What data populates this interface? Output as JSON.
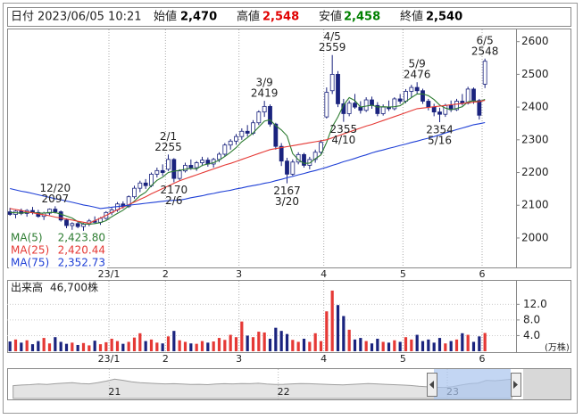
{
  "header": {
    "date_label": "日付",
    "datetime": "2023/06/05 10:21",
    "fields": [
      {
        "label": "始値",
        "value": "2,470",
        "color": "#000000"
      },
      {
        "label": "高値",
        "value": "2,548",
        "color": "#e00000"
      },
      {
        "label": "安値",
        "value": "2,458",
        "color": "#008000"
      },
      {
        "label": "終値",
        "value": "2,540",
        "color": "#000000"
      }
    ]
  },
  "chart_data": [
    {
      "type": "candlestick",
      "categories": [
        null,
        null,
        null,
        null,
        null,
        null,
        null,
        null,
        null,
        null,
        null,
        null,
        null,
        null,
        null,
        null,
        null,
        null,
        "23/1",
        null,
        null,
        null,
        null,
        null,
        null,
        null,
        null,
        null,
        "2",
        null,
        null,
        null,
        null,
        null,
        null,
        null,
        null,
        null,
        null,
        null,
        null,
        "3",
        null,
        null,
        null,
        null,
        null,
        null,
        null,
        null,
        null,
        null,
        null,
        null,
        null,
        null,
        "4",
        null,
        null,
        null,
        null,
        null,
        null,
        null,
        null,
        null,
        null,
        null,
        null,
        null,
        "5",
        null,
        null,
        null,
        null,
        null,
        null,
        null,
        null,
        null,
        null,
        null,
        null,
        null,
        "6"
      ],
      "open": [
        2080,
        2072,
        2082,
        2075,
        2084,
        2078,
        2066,
        2076,
        2088,
        2080,
        2055,
        2038,
        2044,
        2035,
        2042,
        2052,
        2048,
        2060,
        2078,
        2086,
        2104,
        2096,
        2126,
        2152,
        2168,
        2160,
        2195,
        2206,
        2210,
        2240,
        2182,
        2205,
        2222,
        2215,
        2230,
        2238,
        2226,
        2240,
        2256,
        2284,
        2296,
        2310,
        2326,
        2320,
        2352,
        2385,
        2402,
        2348,
        2280,
        2235,
        2195,
        2232,
        2255,
        2222,
        2240,
        2262,
        2370,
        2450,
        2500,
        2410,
        2380,
        2412,
        2400,
        2390,
        2422,
        2405,
        2380,
        2400,
        2395,
        2425,
        2418,
        2448,
        2460,
        2450,
        2418,
        2400,
        2385,
        2378,
        2405,
        2392,
        2418,
        2412,
        2455,
        2420,
        2470
      ],
      "high": [
        2092,
        2085,
        2090,
        2088,
        2095,
        2086,
        2080,
        2090,
        2097,
        2084,
        2060,
        2048,
        2050,
        2046,
        2058,
        2066,
        2064,
        2082,
        2092,
        2110,
        2112,
        2130,
        2160,
        2175,
        2180,
        2200,
        2215,
        2225,
        2255,
        2244,
        2210,
        2230,
        2240,
        2235,
        2248,
        2246,
        2245,
        2262,
        2290,
        2302,
        2318,
        2335,
        2345,
        2360,
        2390,
        2419,
        2408,
        2352,
        2290,
        2245,
        2240,
        2262,
        2260,
        2248,
        2270,
        2300,
        2460,
        2559,
        2510,
        2425,
        2420,
        2440,
        2418,
        2430,
        2432,
        2415,
        2408,
        2420,
        2430,
        2440,
        2455,
        2468,
        2476,
        2456,
        2425,
        2410,
        2398,
        2410,
        2420,
        2425,
        2440,
        2462,
        2460,
        2425,
        2548
      ],
      "low": [
        2068,
        2060,
        2070,
        2065,
        2072,
        2062,
        2055,
        2070,
        2075,
        2050,
        2030,
        2025,
        2030,
        2022,
        2036,
        2045,
        2040,
        2056,
        2070,
        2080,
        2090,
        2092,
        2120,
        2140,
        2150,
        2155,
        2185,
        2190,
        2205,
        2170,
        2176,
        2200,
        2208,
        2205,
        2220,
        2218,
        2215,
        2232,
        2250,
        2270,
        2285,
        2300,
        2310,
        2315,
        2345,
        2370,
        2340,
        2270,
        2220,
        2167,
        2190,
        2225,
        2215,
        2210,
        2230,
        2255,
        2365,
        2440,
        2400,
        2355,
        2372,
        2395,
        2380,
        2385,
        2395,
        2372,
        2374,
        2388,
        2390,
        2410,
        2412,
        2430,
        2440,
        2410,
        2390,
        2372,
        2354,
        2370,
        2385,
        2388,
        2405,
        2408,
        2410,
        2362,
        2458
      ],
      "close": [
        2072,
        2082,
        2075,
        2084,
        2078,
        2066,
        2076,
        2088,
        2080,
        2055,
        2038,
        2044,
        2035,
        2042,
        2052,
        2048,
        2060,
        2078,
        2086,
        2104,
        2096,
        2126,
        2152,
        2168,
        2160,
        2195,
        2206,
        2200,
        2240,
        2182,
        2205,
        2222,
        2215,
        2230,
        2238,
        2226,
        2240,
        2256,
        2284,
        2296,
        2310,
        2326,
        2320,
        2352,
        2385,
        2402,
        2348,
        2280,
        2235,
        2195,
        2232,
        2255,
        2222,
        2240,
        2262,
        2292,
        2445,
        2500,
        2410,
        2380,
        2412,
        2400,
        2390,
        2422,
        2405,
        2380,
        2400,
        2395,
        2425,
        2418,
        2448,
        2460,
        2450,
        2418,
        2400,
        2385,
        2378,
        2405,
        2392,
        2418,
        2412,
        2455,
        2420,
        2375,
        2540
      ],
      "up_color": "#ffffff",
      "down_color": "#1a237e",
      "edge_color": "#1a237e",
      "series": [
        {
          "name": "MA(5)",
          "color": "#2e7d32",
          "value_label": "2,423.80",
          "values": [
            2078,
            2077,
            2076,
            2078,
            2078,
            2076,
            2076,
            2078,
            2078,
            2073,
            2067,
            2061,
            2050,
            2043,
            2042,
            2044,
            2047,
            2053,
            2065,
            2075,
            2085,
            2098,
            2113,
            2129,
            2140,
            2160,
            2176,
            2186,
            2200,
            2204,
            2207,
            2210,
            2213,
            2211,
            2222,
            2226,
            2230,
            2238,
            2249,
            2262,
            2276,
            2294,
            2307,
            2321,
            2339,
            2357,
            2361,
            2343,
            2330,
            2312,
            2258,
            2239,
            2228,
            2229,
            2242,
            2254,
            2292,
            2340,
            2370,
            2406,
            2429,
            2420,
            2400,
            2403,
            2406,
            2400,
            2401,
            2400,
            2401,
            2404,
            2417,
            2429,
            2440,
            2440,
            2435,
            2423,
            2406,
            2397,
            2392,
            2396,
            2401,
            2416,
            2419,
            2416,
            2423.8
          ]
        },
        {
          "name": "MA(25)",
          "color": "#e53935",
          "value_label": "2,420.44",
          "values": [
            2090,
            2087,
            2084,
            2080,
            2077,
            2074,
            2071,
            2068,
            2064,
            2061,
            2058,
            2055,
            2051,
            2048,
            2045,
            2053,
            2061,
            2069,
            2078,
            2086,
            2094,
            2102,
            2110,
            2118,
            2126,
            2135,
            2143,
            2151,
            2159,
            2167,
            2175,
            2181,
            2187,
            2193,
            2199,
            2205,
            2211,
            2217,
            2223,
            2228,
            2234,
            2240,
            2246,
            2252,
            2258,
            2264,
            2270,
            2273,
            2276,
            2279,
            2282,
            2285,
            2288,
            2291,
            2294,
            2297,
            2300,
            2306,
            2312,
            2318,
            2324,
            2330,
            2336,
            2342,
            2347,
            2353,
            2359,
            2365,
            2371,
            2377,
            2383,
            2389,
            2395,
            2397,
            2399,
            2401,
            2403,
            2405,
            2407,
            2409,
            2411,
            2413,
            2415,
            2417,
            2420.44
          ]
        },
        {
          "name": "MA(75)",
          "color": "#1e3fd6",
          "value_label": "2,352.73",
          "values": [
            2151,
            2147,
            2143,
            2140,
            2136,
            2132,
            2128,
            2124,
            2120,
            2117,
            2113,
            2109,
            2105,
            2101,
            2098,
            2094,
            2090,
            2092,
            2094,
            2096,
            2098,
            2100,
            2102,
            2104,
            2106,
            2108,
            2110,
            2112,
            2114,
            2115,
            2116,
            2119,
            2123,
            2126,
            2129,
            2133,
            2136,
            2140,
            2143,
            2146,
            2150,
            2153,
            2157,
            2160,
            2163,
            2167,
            2170,
            2175,
            2179,
            2184,
            2188,
            2193,
            2197,
            2202,
            2206,
            2211,
            2216,
            2222,
            2227,
            2233,
            2238,
            2243,
            2249,
            2254,
            2260,
            2265,
            2269,
            2274,
            2278,
            2283,
            2287,
            2292,
            2296,
            2301,
            2305,
            2310,
            2315,
            2321,
            2326,
            2331,
            2336,
            2341,
            2346,
            2349,
            2352.73
          ]
        }
      ],
      "annotations": [
        {
          "date": "12/20",
          "value": 2097
        },
        {
          "date": "2/1",
          "value": 2255
        },
        {
          "date": "2/6",
          "value": 2170
        },
        {
          "date": "3/9",
          "value": 2419
        },
        {
          "date": "3/20",
          "value": 2167
        },
        {
          "date": "4/5",
          "value": 2559
        },
        {
          "date": "4/10",
          "value": 2355
        },
        {
          "date": "5/9",
          "value": 2476
        },
        {
          "date": "5/16",
          "value": 2354
        },
        {
          "date": "6/5",
          "value": 2548
        }
      ],
      "ylim": [
        1910,
        2640
      ],
      "yticks": [
        2000,
        2100,
        2200,
        2300,
        2400,
        2500,
        2600
      ],
      "grid": false
    },
    {
      "type": "bar",
      "title": "出来高",
      "value_label": "46,700株",
      "unit_label": "(万株)",
      "up_color": "#e53935",
      "down_color": "#1a237e",
      "values": [
        2.5,
        3.0,
        2.2,
        2.8,
        1.8,
        2.6,
        3.4,
        2.0,
        3.6,
        2.4,
        1.9,
        2.2,
        1.6,
        2.1,
        1.5,
        2.7,
        1.8,
        2.3,
        3.2,
        2.6,
        1.9,
        2.4,
        3.5,
        4.6,
        2.6,
        3.0,
        2.2,
        2.0,
        3.8,
        5.2,
        2.8,
        2.4,
        2.0,
        1.9,
        2.6,
        2.2,
        2.5,
        3.4,
        2.9,
        4.2,
        3.6,
        7.6,
        4.0,
        3.6,
        5.0,
        4.8,
        3.2,
        6.0,
        5.2,
        4.4,
        2.9,
        2.4,
        3.2,
        2.4,
        4.6,
        2.6,
        10.2,
        15.5,
        11.8,
        9.0,
        5.5,
        3.0,
        3.4,
        2.6,
        2.0,
        3.2,
        2.4,
        2.2,
        2.8,
        2.4,
        3.6,
        3.0,
        4.2,
        2.6,
        3.0,
        2.2,
        3.4,
        2.0,
        2.6,
        3.0,
        4.6,
        4.2,
        2.4,
        3.8,
        4.67
      ],
      "ylim": [
        0,
        18
      ],
      "yticks": [
        {
          "value": 4,
          "label": "4.0"
        },
        {
          "value": 8,
          "label": "8.0"
        },
        {
          "value": 12,
          "label": "12.0"
        }
      ],
      "grid": true
    },
    {
      "type": "area",
      "color": "#9e9e9e",
      "categories": [
        null,
        null,
        null,
        null,
        null,
        null,
        null,
        null,
        null,
        null,
        null,
        null,
        "21",
        null,
        null,
        null,
        null,
        null,
        null,
        null,
        null,
        null,
        null,
        null,
        null,
        null,
        null,
        null,
        null,
        null,
        null,
        null,
        "22",
        null,
        null,
        null,
        null,
        null,
        null,
        null,
        null,
        null,
        null,
        null,
        null,
        null,
        null,
        null,
        null,
        null,
        null,
        null,
        "23",
        null,
        null,
        null,
        null,
        null,
        null,
        null
      ],
      "values": [
        2150,
        2180,
        2200,
        2230,
        2210,
        2250,
        2280,
        2300,
        2260,
        2240,
        2300,
        2380,
        2480,
        2420,
        2350,
        2300,
        2280,
        2260,
        2240,
        2250,
        2230,
        2210,
        2220,
        2200,
        2230,
        2250,
        2240,
        2260,
        2250,
        2270,
        2230,
        2210,
        2220,
        2240,
        2260,
        2250,
        2230,
        2220,
        2200,
        2190,
        2210,
        2230,
        2260,
        2240,
        2220,
        2200,
        2180,
        2160,
        2120,
        2090,
        2070,
        2060,
        2100,
        2180,
        2250,
        2280,
        2420,
        2400,
        2440,
        2480
      ],
      "ylim": [
        1500,
        2900
      ]
    }
  ]
}
